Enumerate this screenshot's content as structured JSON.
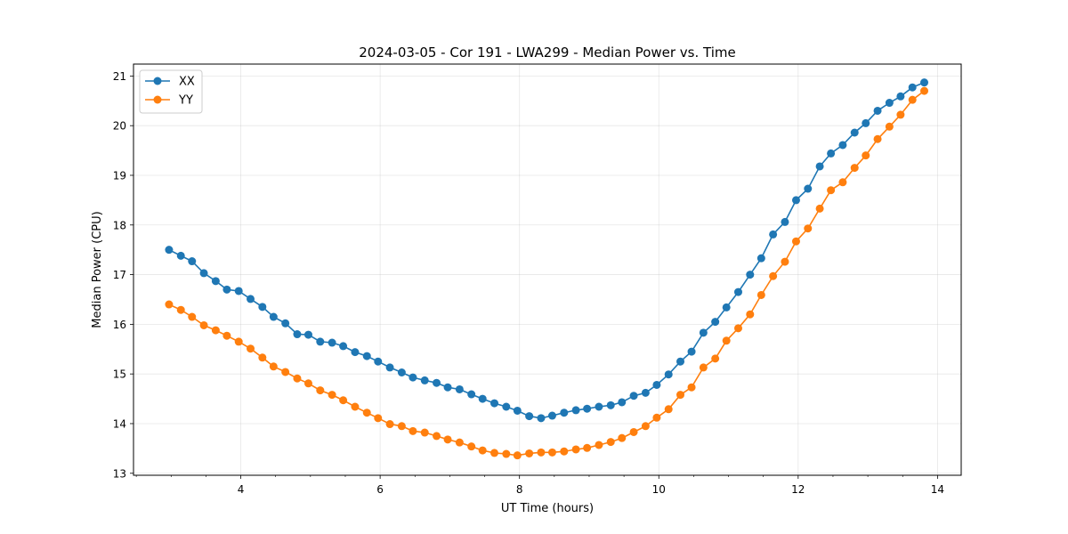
{
  "chart_data": {
    "type": "line",
    "title": "2024-03-05 - Cor 191 - LWA299 - Median Power vs. Time",
    "xlabel": "UT Time (hours)",
    "ylabel": "Median Power (CPU)",
    "xlim": [
      2.46,
      14.34
    ],
    "ylim": [
      12.96,
      21.24
    ],
    "xticks": [
      4,
      6,
      8,
      10,
      12,
      14
    ],
    "yticks": [
      13,
      14,
      15,
      16,
      17,
      18,
      19,
      20,
      21
    ],
    "grid": true,
    "legend_location": "top-left",
    "x": [
      2.97,
      3.14,
      3.3,
      3.47,
      3.64,
      3.8,
      3.97,
      4.14,
      4.31,
      4.47,
      4.64,
      4.81,
      4.97,
      5.14,
      5.31,
      5.47,
      5.64,
      5.81,
      5.97,
      6.14,
      6.31,
      6.47,
      6.64,
      6.81,
      6.97,
      7.14,
      7.31,
      7.47,
      7.64,
      7.81,
      7.97,
      8.14,
      8.31,
      8.47,
      8.64,
      8.81,
      8.97,
      9.14,
      9.31,
      9.47,
      9.64,
      9.81,
      9.97,
      10.14,
      10.31,
      10.47,
      10.64,
      10.81,
      10.97,
      11.14,
      11.31,
      11.47,
      11.64,
      11.81,
      11.97,
      12.14,
      12.31,
      12.47,
      12.64,
      12.81,
      12.97,
      13.14,
      13.31,
      13.47,
      13.64,
      13.81
    ],
    "series": [
      {
        "name": "XX",
        "color": "#1f77b4",
        "values": [
          17.5,
          17.38,
          17.27,
          17.03,
          16.87,
          16.7,
          16.67,
          16.51,
          16.35,
          16.15,
          16.02,
          15.8,
          15.79,
          15.65,
          15.63,
          15.56,
          15.44,
          15.36,
          15.25,
          15.13,
          15.03,
          14.93,
          14.87,
          14.82,
          14.73,
          14.69,
          14.59,
          14.5,
          14.41,
          14.34,
          14.26,
          14.15,
          14.11,
          14.16,
          14.22,
          14.27,
          14.3,
          14.34,
          14.37,
          14.43,
          14.56,
          14.62,
          14.78,
          14.99,
          15.25,
          15.45,
          15.83,
          16.05,
          16.34,
          16.65,
          17.0,
          17.33,
          17.81,
          18.06,
          18.5,
          18.73,
          19.18,
          19.44,
          19.61,
          19.86,
          20.05,
          20.3,
          20.46,
          20.59,
          20.77,
          20.87
        ]
      },
      {
        "name": "YY",
        "color": "#ff7f0e",
        "values": [
          16.4,
          16.29,
          16.15,
          15.98,
          15.88,
          15.77,
          15.65,
          15.51,
          15.33,
          15.15,
          15.04,
          14.91,
          14.81,
          14.67,
          14.58,
          14.47,
          14.34,
          14.22,
          14.11,
          13.99,
          13.95,
          13.85,
          13.82,
          13.75,
          13.68,
          13.62,
          13.54,
          13.46,
          13.41,
          13.39,
          13.36,
          13.4,
          13.42,
          13.42,
          13.44,
          13.48,
          13.51,
          13.57,
          13.63,
          13.71,
          13.83,
          13.95,
          14.12,
          14.29,
          14.58,
          14.73,
          15.13,
          15.31,
          15.67,
          15.92,
          16.2,
          16.59,
          16.97,
          17.26,
          17.67,
          17.93,
          18.33,
          18.7,
          18.86,
          19.15,
          19.4,
          19.73,
          19.98,
          20.22,
          20.52,
          20.7
        ]
      }
    ]
  }
}
